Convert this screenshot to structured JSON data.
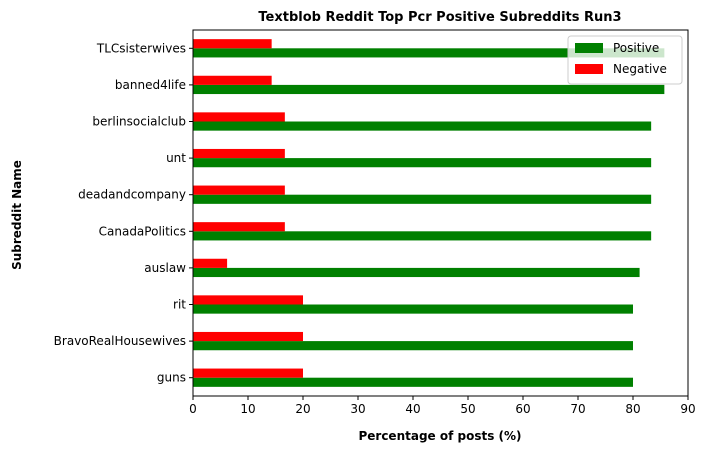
{
  "chart_data": {
    "type": "bar",
    "orientation": "horizontal",
    "title": "Textblob Reddit Top Pcr Positive Subreddits Run3",
    "xlabel": "Percentage of posts (%)",
    "ylabel": "Subreddit Name",
    "xlim": [
      0,
      90
    ],
    "xticks": [
      "0",
      "10",
      "20",
      "30",
      "40",
      "50",
      "60",
      "70",
      "80",
      "90"
    ],
    "grid": false,
    "legend_position": "top-right",
    "categories": [
      "TLCsisterwives",
      "banned4life",
      "berlinsocialclub",
      "unt",
      "deadandcompany",
      "CanadaPolitics",
      "auslaw",
      "rit",
      "BravoRealHousewives",
      "guns"
    ],
    "series": [
      {
        "name": "Positive",
        "color": "#008000",
        "values": [
          85.7,
          85.7,
          83.3,
          83.3,
          83.3,
          83.3,
          81.2,
          80.0,
          80.0,
          80.0
        ]
      },
      {
        "name": "Negative",
        "color": "#ff0000",
        "values": [
          14.3,
          14.3,
          16.7,
          16.7,
          16.7,
          16.7,
          6.2,
          20.0,
          20.0,
          20.0
        ]
      }
    ]
  }
}
